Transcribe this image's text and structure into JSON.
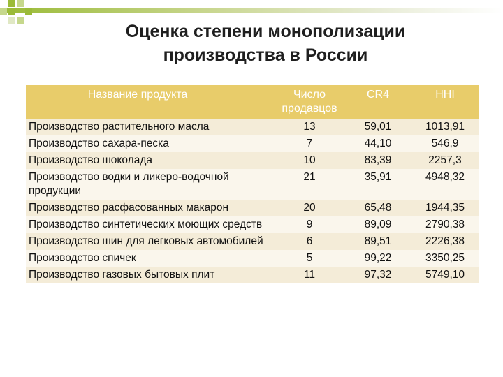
{
  "slide": {
    "title_line1": "Оценка степени монополизации",
    "title_line2": "производства в России"
  },
  "colors": {
    "header_bg": "#e8cc6a",
    "row_odd": "#f4ecd8",
    "row_even": "#faf6ec",
    "accent_green": "#9bbb38"
  },
  "table": {
    "headers": {
      "name": "Название продукта",
      "sellers_line1": "Число",
      "sellers_line2": "продавцов",
      "cr4": "CR4",
      "hhi": "HHI"
    },
    "rows": [
      {
        "name": "Производство растительного масла",
        "sellers": "13",
        "cr4": "59,01",
        "hhi": "1013,91"
      },
      {
        "name": "Производство сахара-песка",
        "sellers": "7",
        "cr4": "44,10",
        "hhi": "546,9"
      },
      {
        "name": "Производство шоколада",
        "sellers": "10",
        "cr4": "83,39",
        "hhi": "2257,3"
      },
      {
        "name": "Производство водки и ликеро-водочной продукции",
        "sellers": "21",
        "cr4": "35,91",
        "hhi": "4948,32"
      },
      {
        "name": "Производство расфасованных макарон",
        "sellers": "20",
        "cr4": "65,48",
        "hhi": "1944,35"
      },
      {
        "name": "Производство синтетических моющих средств",
        "sellers": "9",
        "cr4": "89,09",
        "hhi": "2790,38"
      },
      {
        "name": "Производство шин для легковых автомобилей",
        "sellers": "6",
        "cr4": "89,51",
        "hhi": "2226,38"
      },
      {
        "name": "Производство спичек",
        "sellers": "5",
        "cr4": "99,22",
        "hhi": "3350,25"
      },
      {
        "name": "Производство газовых бытовых плит",
        "sellers": "11",
        "cr4": "97,32",
        "hhi": "5749,10"
      }
    ]
  }
}
